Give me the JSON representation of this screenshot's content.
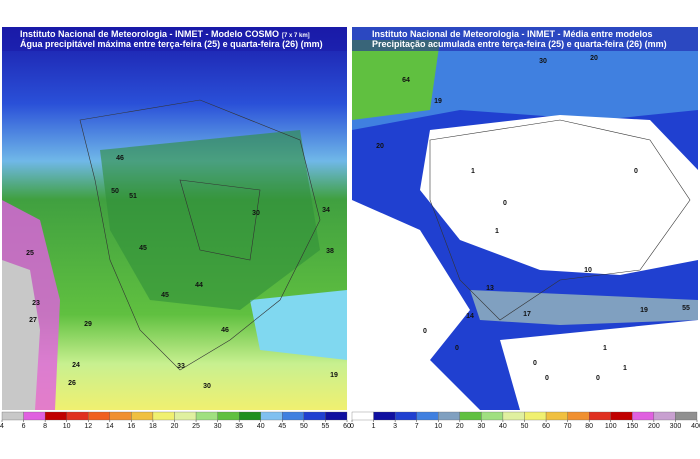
{
  "panels": [
    {
      "title": "Instituto Nacional de Meteorologia - INMET - Modelo COSMO",
      "title_note": "[7 x 7 km]",
      "subtitle": "Água precipitável máxima entre terça-feira (25) e quarta-feira (26) (mm)",
      "colorbar": {
        "ticks": [
          4,
          6,
          8,
          10,
          12,
          14,
          16,
          18,
          20,
          25,
          30,
          35,
          40,
          45,
          50,
          55,
          60
        ],
        "colors": [
          "#c8c8c8",
          "#e060e0",
          "#c00000",
          "#e03020",
          "#f06020",
          "#f09030",
          "#f0c040",
          "#f0f070",
          "#e0f0a0",
          "#a0e080",
          "#60c040",
          "#209020",
          "#80c0f0",
          "#4080e0",
          "#2040d0",
          "#1010a0"
        ]
      },
      "labels": [
        "50",
        "51",
        "46",
        "30",
        "34",
        "38",
        "45",
        "45",
        "44",
        "29",
        "24",
        "26",
        "33",
        "30",
        "19",
        "27",
        "23",
        "25",
        "46"
      ]
    },
    {
      "title": "Instituto Nacional de Meteorologia - INMET - Média entre modelos",
      "subtitle": "Precipitação acumulada entre terça-feira (25) e quarta-feira (26) (mm)",
      "colorbar": {
        "ticks": [
          0,
          1,
          3,
          7,
          10,
          20,
          30,
          40,
          50,
          60,
          70,
          80,
          100,
          150,
          200,
          300,
          400
        ],
        "colors": [
          "#ffffff",
          "#1010a0",
          "#2040d0",
          "#4080e0",
          "#80a0c0",
          "#60c040",
          "#a0e080",
          "#e0f0a0",
          "#f0f070",
          "#f0c040",
          "#f09030",
          "#e03020",
          "#c00000",
          "#e060e0",
          "#c8a0d0",
          "#909090"
        ]
      },
      "labels": [
        "64",
        "19",
        "20",
        "30",
        "20",
        "1",
        "0",
        "1",
        "0",
        "13",
        "14",
        "17",
        "10",
        "19",
        "55",
        "0",
        "0",
        "1",
        "0",
        "1",
        "0",
        "0"
      ]
    }
  ]
}
